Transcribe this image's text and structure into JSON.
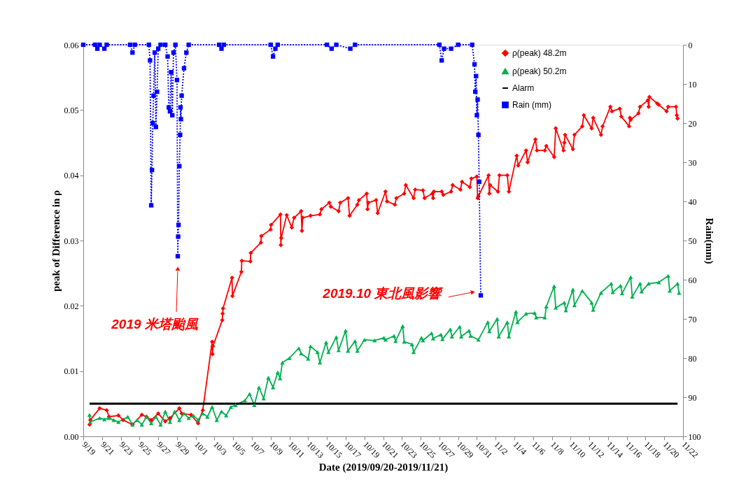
{
  "chart_data": {
    "type": "line",
    "xlabel": "Date (2019/09/20-2019/11/21)",
    "ylabel": "peak of Difference in ρ",
    "y2label": "Rain(mm)",
    "legend": "top right",
    "xlim": [
      "2019-09-19",
      "2019-11-22"
    ],
    "xticks": [
      {
        "value": "2019-09-19",
        "label": "9/19"
      },
      {
        "value": "2019-09-21",
        "label": "9/21"
      },
      {
        "value": "2019-09-23",
        "label": "9/23"
      },
      {
        "value": "2019-09-25",
        "label": "9/25"
      },
      {
        "value": "2019-09-27",
        "label": "9/27"
      },
      {
        "value": "2019-09-29",
        "label": "9/29"
      },
      {
        "value": "2019-10-01",
        "label": "10/1"
      },
      {
        "value": "2019-10-03",
        "label": "10/3"
      },
      {
        "value": "2019-10-05",
        "label": "10/5"
      },
      {
        "value": "2019-10-07",
        "label": "10/7"
      },
      {
        "value": "2019-10-09",
        "label": "10/9"
      },
      {
        "value": "2019-10-11",
        "label": "10/11"
      },
      {
        "value": "2019-10-13",
        "label": "10/13"
      },
      {
        "value": "2019-10-15",
        "label": "10/15"
      },
      {
        "value": "2019-10-17",
        "label": "10/17"
      },
      {
        "value": "2019-10-19",
        "label": "10/19"
      },
      {
        "value": "2019-10-21",
        "label": "10/21"
      },
      {
        "value": "2019-10-23",
        "label": "10/23"
      },
      {
        "value": "2019-10-25",
        "label": "10/25"
      },
      {
        "value": "2019-10-27",
        "label": "10/27"
      },
      {
        "value": "2019-10-29",
        "label": "10/29"
      },
      {
        "value": "2019-10-31",
        "label": "10/31"
      },
      {
        "value": "2019-11-02",
        "label": "11/2"
      },
      {
        "value": "2019-11-04",
        "label": "11/4"
      },
      {
        "value": "2019-11-06",
        "label": "11/6"
      },
      {
        "value": "2019-11-08",
        "label": "11/8"
      },
      {
        "value": "2019-11-10",
        "label": "11/10"
      },
      {
        "value": "2019-11-12",
        "label": "11/12"
      },
      {
        "value": "2019-11-14",
        "label": "11/14"
      },
      {
        "value": "2019-11-16",
        "label": "11/16"
      },
      {
        "value": "2019-11-18",
        "label": "11/18"
      },
      {
        "value": "2019-11-20",
        "label": "11/20"
      },
      {
        "value": "2019-11-22",
        "label": "11/22"
      }
    ],
    "ylim": [
      0,
      0.06
    ],
    "yticks": [
      {
        "value": 0,
        "label": "0.00"
      },
      {
        "value": 0.01,
        "label": "0.01"
      },
      {
        "value": 0.02,
        "label": "0.02"
      },
      {
        "value": 0.03,
        "label": "0.03"
      },
      {
        "value": 0.04,
        "label": "0.04"
      },
      {
        "value": 0.05,
        "label": "0.05"
      },
      {
        "value": 0.06,
        "label": "0.06"
      }
    ],
    "y2lim": [
      100,
      0
    ],
    "y2ticks": [
      0,
      10,
      20,
      30,
      40,
      50,
      60,
      70,
      80,
      90,
      100
    ],
    "annotations": [
      {
        "text": "2019 米塔颱風",
        "x": "2019-09-29T02:00",
        "y": 0.0257
      },
      {
        "text": "2019.10 東北風影響",
        "x": "2019-10-30T14:00",
        "y": 0.0221
      }
    ],
    "series": [
      {
        "name": "ρ(peak) 48.2m",
        "color": "#ff0000",
        "marker": "diamond",
        "line_style": "solid",
        "x": [
          "2019-09-19T16:00",
          "2019-09-19T18:00",
          "2019-09-20T18:00",
          "2019-09-21T12:00",
          "2019-09-21T18:00",
          "2019-09-22T18:00",
          "2019-09-23T06:00",
          "2019-09-24T06:00",
          "2019-09-25T06:00",
          "2019-09-25T18:00",
          "2019-09-26T06:00",
          "2019-09-27T00:00",
          "2019-09-27T18:00",
          "2019-09-28T06:00",
          "2019-09-29T06:00",
          "2019-09-29T12:00",
          "2019-09-30T12:00",
          "2019-10-01T06:00",
          "2019-10-01T18:00",
          "2019-10-02T18:00",
          "2019-10-02T19:00",
          "2019-10-02T20:00",
          "2019-10-03T20:00",
          "2019-10-03T21:00",
          "2019-10-03T22:00",
          "2019-10-04T21:00",
          "2019-10-04T22:00",
          "2019-10-05T21:00",
          "2019-10-05T22:00",
          "2019-10-06T20:00",
          "2019-10-06T21:00",
          "2019-10-07T23:00",
          "2019-10-08T00:00",
          "2019-10-09T00:00",
          "2019-10-09T01:00",
          "2019-10-10T01:00",
          "2019-10-10T02:00",
          "2019-10-10T03:00",
          "2019-10-10T17:00",
          "2019-10-11T06:00",
          "2019-10-11T12:00",
          "2019-10-12T06:00",
          "2019-10-12T08:00",
          "2019-10-12T10:00",
          "2019-10-13T06:00",
          "2019-10-14T06:00",
          "2019-10-14T10:00",
          "2019-10-15T06:00",
          "2019-10-15T10:00",
          "2019-10-16T06:00",
          "2019-10-16T10:00",
          "2019-10-17T06:00",
          "2019-10-17T10:00",
          "2019-10-18T06:00",
          "2019-10-18T10:00",
          "2019-10-19T06:00",
          "2019-10-19T08:00",
          "2019-10-19T10:00",
          "2019-10-20T06:00",
          "2019-10-20T10:00",
          "2019-10-21T06:00",
          "2019-10-21T10:00",
          "2019-10-22T06:00",
          "2019-10-22T10:00",
          "2019-10-23T06:00",
          "2019-10-23T10:00",
          "2019-10-24T06:00",
          "2019-10-24T10:00",
          "2019-10-25T06:00",
          "2019-10-25T10:00",
          "2019-10-26T06:00",
          "2019-10-26T08:00",
          "2019-10-26T10:00",
          "2019-10-27T06:00",
          "2019-10-27T10:00",
          "2019-10-28T06:00",
          "2019-10-28T10:00",
          "2019-10-29T06:00",
          "2019-10-29T10:00",
          "2019-10-30T06:00",
          "2019-10-30T10:00",
          "2019-10-31T00:00",
          "2019-10-31T02:00",
          "2019-10-31T04:00",
          "2019-11-01T06:00",
          "2019-11-01T08:00",
          "2019-11-01T10:00",
          "2019-11-02T06:00",
          "2019-11-02T10:00",
          "2019-11-03T06:00",
          "2019-11-03T10:00",
          "2019-11-04T06:00",
          "2019-11-04T10:00",
          "2019-11-05T06:00",
          "2019-11-05T10:00",
          "2019-11-06T06:00",
          "2019-11-06T10:00",
          "2019-11-07T06:00",
          "2019-11-07T10:00",
          "2019-11-08T06:00",
          "2019-11-08T10:00",
          "2019-11-09T06:00",
          "2019-11-09T08:00",
          "2019-11-09T10:00",
          "2019-11-10T06:00",
          "2019-11-10T10:00",
          "2019-11-11T06:00",
          "2019-11-11T10:00",
          "2019-11-12T06:00",
          "2019-11-12T10:00",
          "2019-11-13T06:00",
          "2019-11-13T10:00",
          "2019-11-14T06:00",
          "2019-11-14T10:00",
          "2019-11-15T06:00",
          "2019-11-15T10:00",
          "2019-11-16T06:00",
          "2019-11-16T08:00",
          "2019-11-16T10:00",
          "2019-11-17T06:00",
          "2019-11-17T10:00",
          "2019-11-18T06:00",
          "2019-11-18T08:00",
          "2019-11-18T10:00",
          "2019-11-19T06:00",
          "2019-11-19T10:00",
          "2019-11-20T06:00",
          "2019-11-20T10:00",
          "2019-11-21T06:00",
          "2019-11-21T08:00",
          "2019-11-21T10:00"
        ],
        "values": [
          0.0018,
          0.0025,
          0.0043,
          0.004,
          0.003,
          0.0032,
          0.0025,
          0.0018,
          0.0033,
          0.003,
          0.0025,
          0.0035,
          0.0023,
          0.0028,
          0.0043,
          0.0035,
          0.0033,
          0.002,
          0.004,
          0.0145,
          0.0126,
          0.0138,
          0.0178,
          0.0188,
          0.0196,
          0.0243,
          0.0215,
          0.0252,
          0.0269,
          0.0268,
          0.0281,
          0.0297,
          0.0307,
          0.0317,
          0.0324,
          0.034,
          0.0293,
          0.0304,
          0.0339,
          0.032,
          0.0335,
          0.0345,
          0.0315,
          0.0335,
          0.0338,
          0.034,
          0.0348,
          0.0358,
          0.0352,
          0.0345,
          0.0358,
          0.0365,
          0.0338,
          0.0355,
          0.0362,
          0.0372,
          0.0348,
          0.0358,
          0.0362,
          0.0342,
          0.0375,
          0.036,
          0.0355,
          0.0365,
          0.0372,
          0.0385,
          0.0365,
          0.0378,
          0.0377,
          0.0365,
          0.0372,
          0.0365,
          0.0375,
          0.0375,
          0.037,
          0.0375,
          0.0385,
          0.0378,
          0.039,
          0.0382,
          0.0395,
          0.0398,
          0.0365,
          0.0368,
          0.04,
          0.0372,
          0.0385,
          0.0375,
          0.04,
          0.04,
          0.0375,
          0.043,
          0.0415,
          0.0438,
          0.042,
          0.0455,
          0.0438,
          0.0438,
          0.0445,
          0.0428,
          0.0472,
          0.0438,
          0.045,
          0.0462,
          0.044,
          0.0462,
          0.0475,
          0.0492,
          0.0472,
          0.0488,
          0.0462,
          0.0475,
          0.0505,
          0.0498,
          0.0502,
          0.049,
          0.0475,
          0.0488,
          0.0485,
          0.0495,
          0.0505,
          0.0515,
          0.0505,
          0.052,
          0.051,
          0.0508,
          0.0498,
          0.0505,
          0.0505,
          0.0492,
          0.0487
        ]
      },
      {
        "name": "ρ(peak) 50.2m",
        "color": "#00b050",
        "marker": "triangle",
        "line_style": "solid",
        "x": [
          "2019-09-19T16:00",
          "2019-09-19T18:00",
          "2019-09-20T18:00",
          "2019-09-21T06:00",
          "2019-09-21T18:00",
          "2019-09-22T06:00",
          "2019-09-22T18:00",
          "2019-09-23T18:00",
          "2019-09-24T06:00",
          "2019-09-24T18:00",
          "2019-09-25T06:00",
          "2019-09-25T18:00",
          "2019-09-26T06:00",
          "2019-09-26T18:00",
          "2019-09-27T06:00",
          "2019-09-27T18:00",
          "2019-09-28T06:00",
          "2019-09-28T18:00",
          "2019-09-29T06:00",
          "2019-09-29T18:00",
          "2019-09-30T06:00",
          "2019-09-30T18:00",
          "2019-10-01T06:00",
          "2019-10-01T18:00",
          "2019-10-02T06:00",
          "2019-10-02T18:00",
          "2019-10-03T06:00",
          "2019-10-03T18:00",
          "2019-10-04T06:00",
          "2019-10-04T18:00",
          "2019-10-05T06:00",
          "2019-10-06T06:00",
          "2019-10-06T18:00",
          "2019-10-07T06:00",
          "2019-10-07T18:00",
          "2019-10-08T06:00",
          "2019-10-08T18:00",
          "2019-10-09T06:00",
          "2019-10-09T18:00",
          "2019-10-10T00:00",
          "2019-10-10T06:00",
          "2019-10-11T00:00",
          "2019-10-12T00:00",
          "2019-10-12T06:00",
          "2019-10-13T00:00",
          "2019-10-13T06:00",
          "2019-10-14T00:00",
          "2019-10-14T06:00",
          "2019-10-14T22:00",
          "2019-10-15T04:00",
          "2019-10-16T00:00",
          "2019-10-16T06:00",
          "2019-10-17T00:00",
          "2019-10-17T06:00",
          "2019-10-18T00:00",
          "2019-10-18T06:00",
          "2019-10-19T00:00",
          "2019-10-20T02:00",
          "2019-10-21T02:00",
          "2019-10-21T06:00",
          "2019-10-22T04:00",
          "2019-10-22T08:00",
          "2019-10-23T02:00",
          "2019-10-23T06:00",
          "2019-10-24T02:00",
          "2019-10-24T06:00",
          "2019-10-25T02:00",
          "2019-10-25T06:00",
          "2019-10-26T04:00",
          "2019-10-26T08:00",
          "2019-10-27T04:00",
          "2019-10-27T08:00",
          "2019-10-28T04:00",
          "2019-10-28T08:00",
          "2019-10-29T04:00",
          "2019-10-29T08:00",
          "2019-10-30T04:00",
          "2019-10-30T08:00",
          "2019-10-31T04:00",
          "2019-11-01T04:00",
          "2019-11-01T08:00",
          "2019-11-02T04:00",
          "2019-11-02T08:00",
          "2019-11-03T06:00",
          "2019-11-03T10:00",
          "2019-11-04T04:00",
          "2019-11-04T08:00",
          "2019-11-05T06:00",
          "2019-11-06T04:00",
          "2019-11-06T08:00",
          "2019-11-07T06:00",
          "2019-11-07T10:00",
          "2019-11-08T06:00",
          "2019-11-08T10:00",
          "2019-11-09T08:00",
          "2019-11-09T12:00",
          "2019-11-10T06:00",
          "2019-11-10T10:00",
          "2019-11-11T06:00",
          "2019-11-12T06:00",
          "2019-11-12T10:00",
          "2019-11-13T06:00",
          "2019-11-14T08:00",
          "2019-11-14T12:00",
          "2019-11-15T08:00",
          "2019-11-15T12:00",
          "2019-11-16T10:00",
          "2019-11-16T14:00",
          "2019-11-17T10:00",
          "2019-11-17T14:00",
          "2019-11-18T08:00",
          "2019-11-19T10:00",
          "2019-11-20T10:00",
          "2019-11-20T14:00",
          "2019-11-21T10:00",
          "2019-11-21T14:00"
        ],
        "values": [
          0.0033,
          0.0022,
          0.0028,
          0.0026,
          0.0028,
          0.0025,
          0.0022,
          0.003,
          0.0018,
          0.0025,
          0.0018,
          0.003,
          0.002,
          0.003,
          0.0018,
          0.0038,
          0.0022,
          0.0038,
          0.0025,
          0.0035,
          0.0028,
          0.0032,
          0.0025,
          0.0035,
          0.003,
          0.0045,
          0.0025,
          0.0038,
          0.0032,
          0.0045,
          0.0048,
          0.0055,
          0.0065,
          0.0048,
          0.0075,
          0.0058,
          0.009,
          0.0075,
          0.0098,
          0.0089,
          0.0113,
          0.012,
          0.0135,
          0.0127,
          0.0119,
          0.0138,
          0.0129,
          0.0113,
          0.0144,
          0.0129,
          0.0152,
          0.0132,
          0.0162,
          0.0131,
          0.0146,
          0.0131,
          0.0148,
          0.0147,
          0.0151,
          0.0148,
          0.0154,
          0.0146,
          0.0169,
          0.0145,
          0.0141,
          0.0129,
          0.0151,
          0.0147,
          0.0158,
          0.015,
          0.0156,
          0.0149,
          0.0164,
          0.0153,
          0.0168,
          0.0153,
          0.0162,
          0.0154,
          0.0148,
          0.0175,
          0.0161,
          0.018,
          0.0153,
          0.0175,
          0.0153,
          0.0191,
          0.0175,
          0.0188,
          0.0189,
          0.0182,
          0.0182,
          0.0199,
          0.023,
          0.0197,
          0.0205,
          0.0193,
          0.0225,
          0.0201,
          0.0223,
          0.0205,
          0.0194,
          0.022,
          0.0234,
          0.0221,
          0.0231,
          0.0219,
          0.0244,
          0.0214,
          0.0234,
          0.0222,
          0.0234,
          0.0236,
          0.0246,
          0.0223,
          0.0234,
          0.022
        ]
      },
      {
        "name": "Alarm",
        "color": "#000000",
        "marker": "none",
        "line_style": "solid",
        "x": [
          "2019-09-19T16:00",
          "2019-11-21T10:00"
        ],
        "values": [
          0.005,
          0.005
        ]
      },
      {
        "name": "Rain (mm)",
        "color": "#0000ff",
        "marker": "square",
        "line_style": "dotted",
        "axis": "y2",
        "x": [
          "2019-09-19T00:00",
          "2019-09-20T06:00",
          "2019-09-20T12:00",
          "2019-09-20T18:00",
          "2019-09-21T06:00",
          "2019-09-21T12:00",
          "2019-09-24T00:00",
          "2019-09-24T06:00",
          "2019-09-24T12:00",
          "2019-09-26T00:00",
          "2019-09-26T03:00",
          "2019-09-26T06:00",
          "2019-09-26T08:00",
          "2019-09-26T10:00",
          "2019-09-26T12:00",
          "2019-09-26T15:00",
          "2019-09-26T18:00",
          "2019-09-26T21:00",
          "2019-09-27T00:00",
          "2019-09-27T06:00",
          "2019-09-27T18:00",
          "2019-09-28T00:00",
          "2019-09-28T03:00",
          "2019-09-28T06:00",
          "2019-09-28T09:00",
          "2019-09-28T12:00",
          "2019-09-28T15:00",
          "2019-09-28T20:00",
          "2019-09-29T00:00",
          "2019-09-29T02:00",
          "2019-09-29T03:00",
          "2019-09-29T04:00",
          "2019-09-29T06:00",
          "2019-09-29T08:00",
          "2019-09-29T09:00",
          "2019-09-29T10:00",
          "2019-09-29T12:00",
          "2019-09-29T18:00",
          "2019-09-30T00:00",
          "2019-09-30T06:00",
          "2019-10-03T12:00",
          "2019-10-03T18:00",
          "2019-10-04T00:00",
          "2019-10-09T00:00",
          "2019-10-09T06:00",
          "2019-10-09T12:00",
          "2019-10-09T18:00",
          "2019-10-15T00:00",
          "2019-10-15T12:00",
          "2019-10-16T00:00",
          "2019-10-17T12:00",
          "2019-10-18T00:00",
          "2019-10-27T00:00",
          "2019-10-27T06:00",
          "2019-10-27T12:00",
          "2019-10-28T06:00",
          "2019-10-29T00:00",
          "2019-10-30T12:00",
          "2019-10-30T18:00",
          "2019-10-30T20:00",
          "2019-10-30T22:00",
          "2019-10-31T00:00",
          "2019-10-31T02:00",
          "2019-10-31T04:00",
          "2019-10-31T06:00",
          "2019-10-31T10:00"
        ],
        "values": [
          0,
          0,
          1,
          0,
          1,
          0,
          0,
          2,
          0,
          0,
          4,
          41,
          32,
          20,
          13,
          2,
          21,
          12,
          1,
          0,
          0,
          3,
          16,
          17,
          7,
          18,
          2,
          0,
          9,
          54,
          49,
          46,
          31,
          23,
          16,
          19,
          13,
          6,
          2,
          0,
          0,
          1,
          0,
          0,
          3,
          1,
          0,
          0,
          1,
          0,
          1,
          0,
          0,
          4,
          1,
          1,
          0,
          0,
          5,
          12,
          8,
          18,
          14,
          23,
          35,
          64
        ]
      }
    ]
  }
}
